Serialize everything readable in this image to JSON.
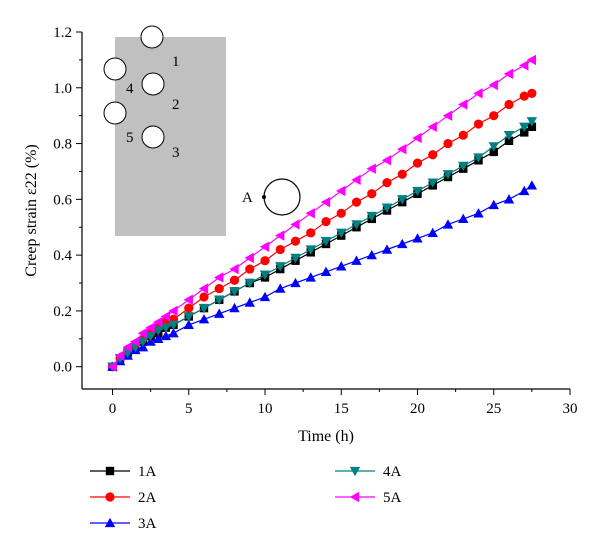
{
  "chart_data": {
    "type": "line",
    "title": "",
    "xlabel": "Time (h)",
    "ylabel": "Creep strain ε22 (%)",
    "xlim": [
      -2,
      30
    ],
    "ylim": [
      -0.08,
      1.2
    ],
    "xticks": [
      "0",
      "5",
      "10",
      "15",
      "20",
      "25",
      "30"
    ],
    "yticks": [
      "0.0",
      "0.2",
      "0.4",
      "0.6",
      "0.8",
      "1.0",
      "1.2"
    ],
    "grid": false,
    "legend_position": "bottom",
    "series": [
      {
        "name": "1A",
        "color": "#000000",
        "marker": "square",
        "x": [
          0,
          0.5,
          1,
          1.5,
          2,
          2.5,
          3,
          3.5,
          4,
          5,
          6,
          7,
          8,
          9,
          10,
          11,
          12,
          13,
          14,
          15,
          16,
          17,
          18,
          19,
          20,
          21,
          22,
          23,
          24,
          25,
          26,
          27,
          27.5
        ],
        "y": [
          0.0,
          0.03,
          0.05,
          0.07,
          0.09,
          0.11,
          0.12,
          0.14,
          0.15,
          0.18,
          0.21,
          0.24,
          0.27,
          0.3,
          0.32,
          0.35,
          0.38,
          0.41,
          0.44,
          0.47,
          0.5,
          0.53,
          0.56,
          0.59,
          0.62,
          0.65,
          0.68,
          0.71,
          0.74,
          0.77,
          0.81,
          0.84,
          0.86
        ]
      },
      {
        "name": "2A",
        "color": "#ff0000",
        "marker": "circle",
        "x": [
          0,
          0.5,
          1,
          1.5,
          2,
          2.5,
          3,
          3.5,
          4,
          5,
          6,
          7,
          8,
          9,
          10,
          11,
          12,
          13,
          14,
          15,
          16,
          17,
          18,
          19,
          20,
          21,
          22,
          23,
          24,
          25,
          26,
          27,
          27.5
        ],
        "y": [
          0.0,
          0.03,
          0.06,
          0.08,
          0.1,
          0.12,
          0.14,
          0.16,
          0.17,
          0.21,
          0.25,
          0.28,
          0.31,
          0.35,
          0.38,
          0.42,
          0.45,
          0.48,
          0.52,
          0.55,
          0.59,
          0.62,
          0.66,
          0.69,
          0.73,
          0.76,
          0.8,
          0.83,
          0.87,
          0.9,
          0.94,
          0.97,
          0.98
        ]
      },
      {
        "name": "3A",
        "color": "#0000ff",
        "marker": "triangle-up",
        "x": [
          0,
          0.5,
          1,
          1.5,
          2,
          2.5,
          3,
          3.5,
          4,
          5,
          6,
          7,
          8,
          9,
          10,
          11,
          12,
          13,
          14,
          15,
          16,
          17,
          18,
          19,
          20,
          21,
          22,
          23,
          24,
          25,
          26,
          27,
          27.5
        ],
        "y": [
          0.0,
          0.02,
          0.04,
          0.06,
          0.07,
          0.09,
          0.1,
          0.11,
          0.12,
          0.15,
          0.17,
          0.19,
          0.21,
          0.23,
          0.25,
          0.28,
          0.3,
          0.32,
          0.34,
          0.36,
          0.38,
          0.4,
          0.42,
          0.44,
          0.46,
          0.48,
          0.51,
          0.53,
          0.55,
          0.58,
          0.6,
          0.63,
          0.65
        ]
      },
      {
        "name": "4A",
        "color": "#008080",
        "marker": "triangle-down",
        "x": [
          0,
          0.5,
          1,
          1.5,
          2,
          2.5,
          3,
          3.5,
          4,
          5,
          6,
          7,
          8,
          9,
          10,
          11,
          12,
          13,
          14,
          15,
          16,
          17,
          18,
          19,
          20,
          21,
          22,
          23,
          24,
          25,
          26,
          27,
          27.5
        ],
        "y": [
          0.0,
          0.03,
          0.05,
          0.07,
          0.09,
          0.11,
          0.13,
          0.14,
          0.15,
          0.18,
          0.21,
          0.24,
          0.27,
          0.3,
          0.33,
          0.36,
          0.39,
          0.42,
          0.45,
          0.48,
          0.51,
          0.54,
          0.57,
          0.6,
          0.63,
          0.66,
          0.69,
          0.72,
          0.75,
          0.79,
          0.83,
          0.86,
          0.88
        ]
      },
      {
        "name": "5A",
        "color": "#ff00ff",
        "marker": "triangle-left",
        "x": [
          0,
          0.5,
          1,
          1.5,
          2,
          2.5,
          3,
          3.5,
          4,
          5,
          6,
          7,
          8,
          9,
          10,
          11,
          12,
          13,
          14,
          15,
          16,
          17,
          18,
          19,
          20,
          21,
          22,
          23,
          24,
          25,
          26,
          27,
          27.5
        ],
        "y": [
          0.0,
          0.04,
          0.07,
          0.09,
          0.12,
          0.14,
          0.16,
          0.18,
          0.2,
          0.24,
          0.28,
          0.32,
          0.35,
          0.39,
          0.43,
          0.47,
          0.51,
          0.55,
          0.59,
          0.63,
          0.67,
          0.71,
          0.74,
          0.78,
          0.82,
          0.86,
          0.9,
          0.94,
          0.98,
          1.01,
          1.05,
          1.08,
          1.1
        ]
      }
    ],
    "inset": {
      "hole_labels": [
        "1",
        "2",
        "3",
        "4",
        "5"
      ],
      "point_label": "A"
    }
  }
}
